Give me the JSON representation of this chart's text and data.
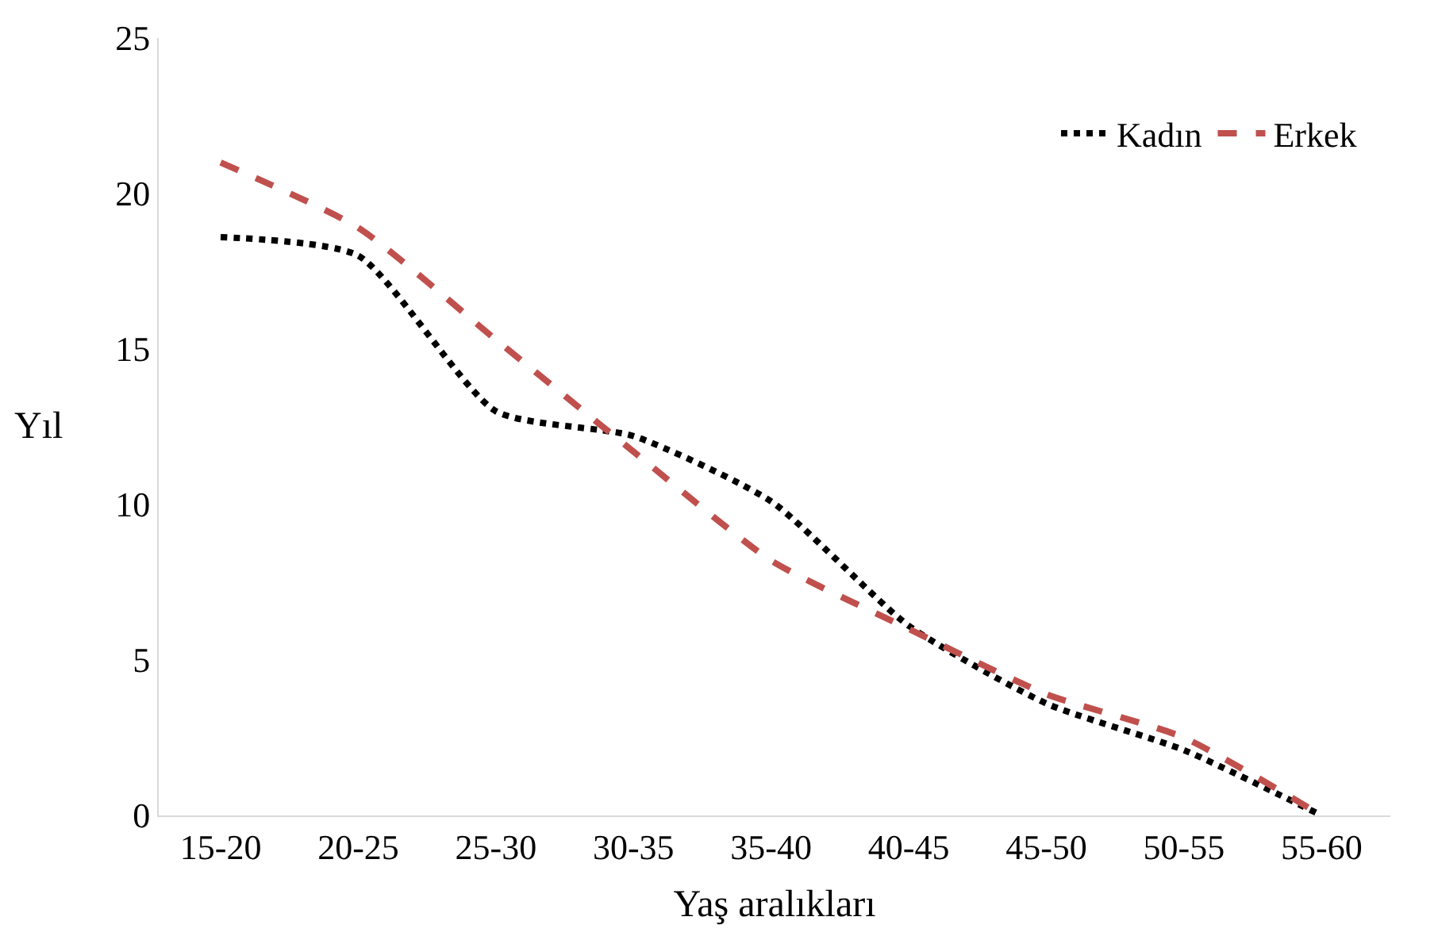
{
  "chart_data": {
    "type": "line",
    "xlabel": "Yaş aralıkları",
    "ylabel": "Yıl",
    "categories": [
      "15-20",
      "20-25",
      "25-30",
      "30-35",
      "35-40",
      "40-45",
      "45-50",
      "50-55",
      "55-60"
    ],
    "series": [
      {
        "name": "Kadın",
        "color": "#000000",
        "line_style": "dotted",
        "values": [
          18.6,
          18.0,
          13.0,
          12.2,
          10.1,
          6.1,
          3.6,
          2.1,
          0
        ]
      },
      {
        "name": "Erkek",
        "color": "#c0504d",
        "line_style": "dashed",
        "values": [
          21.0,
          18.9,
          15.3,
          11.7,
          8.2,
          6.0,
          3.9,
          2.5,
          0
        ]
      }
    ],
    "ylim": [
      0,
      25
    ],
    "yticks": [
      0,
      5,
      10,
      15,
      20,
      25
    ],
    "legend": "top right",
    "marker": "none"
  }
}
